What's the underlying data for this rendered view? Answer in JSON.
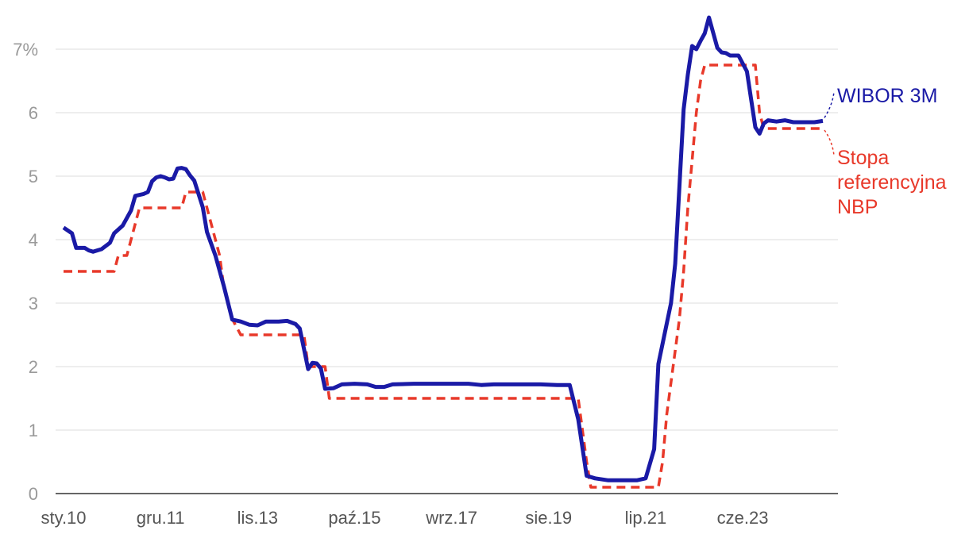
{
  "chart_data": {
    "type": "line",
    "y_tick_labels": [
      "0",
      "1",
      "2",
      "3",
      "4",
      "5",
      "6",
      "7%"
    ],
    "x_tick_labels": [
      "sty.10",
      "gru.11",
      "lis.13",
      "paź.15",
      "wrz.17",
      "sie.19",
      "lip.21",
      "cze.23"
    ],
    "x_tick_dates": [
      "2010-01",
      "2011-12",
      "2013-11",
      "2015-10",
      "2017-09",
      "2019-08",
      "2021-07",
      "2023-06"
    ],
    "xlim": [
      "2010-01",
      "2025-01"
    ],
    "ylim": [
      0,
      7.5
    ],
    "grid": "horizontal",
    "legend_placement": "right, at line ends",
    "series": [
      {
        "name": "WIBOR 3M",
        "color": "#1a1aa6",
        "style": "solid",
        "points": [
          [
            "2010-01",
            4.19
          ],
          [
            "2010-03",
            4.1
          ],
          [
            "2010-04",
            3.87
          ],
          [
            "2010-06",
            3.87
          ],
          [
            "2010-07",
            3.83
          ],
          [
            "2010-08",
            3.81
          ],
          [
            "2010-10",
            3.85
          ],
          [
            "2010-12",
            3.95
          ],
          [
            "2011-01",
            4.1
          ],
          [
            "2011-03",
            4.22
          ],
          [
            "2011-05",
            4.46
          ],
          [
            "2011-06",
            4.69
          ],
          [
            "2011-08",
            4.72
          ],
          [
            "2011-09",
            4.75
          ],
          [
            "2011-10",
            4.92
          ],
          [
            "2011-11",
            4.98
          ],
          [
            "2011-12",
            5.0
          ],
          [
            "2012-01",
            4.98
          ],
          [
            "2012-02",
            4.95
          ],
          [
            "2012-03",
            4.96
          ],
          [
            "2012-04",
            5.12
          ],
          [
            "2012-05",
            5.13
          ],
          [
            "2012-06",
            5.11
          ],
          [
            "2012-07",
            5.01
          ],
          [
            "2012-08",
            4.93
          ],
          [
            "2012-10",
            4.51
          ],
          [
            "2012-11",
            4.12
          ],
          [
            "2013-01",
            3.75
          ],
          [
            "2013-03",
            3.27
          ],
          [
            "2013-05",
            2.74
          ],
          [
            "2013-07",
            2.71
          ],
          [
            "2013-09",
            2.66
          ],
          [
            "2013-11",
            2.65
          ],
          [
            "2014-01",
            2.71
          ],
          [
            "2014-04",
            2.71
          ],
          [
            "2014-06",
            2.72
          ],
          [
            "2014-08",
            2.67
          ],
          [
            "2014-09",
            2.6
          ],
          [
            "2014-11",
            1.96
          ],
          [
            "2014-12",
            2.06
          ],
          [
            "2015-01",
            2.05
          ],
          [
            "2015-02",
            1.97
          ],
          [
            "2015-03",
            1.65
          ],
          [
            "2015-05",
            1.66
          ],
          [
            "2015-07",
            1.72
          ],
          [
            "2015-10",
            1.73
          ],
          [
            "2016-01",
            1.72
          ],
          [
            "2016-03",
            1.68
          ],
          [
            "2016-05",
            1.68
          ],
          [
            "2016-07",
            1.72
          ],
          [
            "2016-12",
            1.73
          ],
          [
            "2018-01",
            1.73
          ],
          [
            "2018-04",
            1.71
          ],
          [
            "2018-07",
            1.72
          ],
          [
            "2019-01",
            1.72
          ],
          [
            "2019-06",
            1.72
          ],
          [
            "2019-10",
            1.71
          ],
          [
            "2020-01",
            1.71
          ],
          [
            "2020-03",
            1.17
          ],
          [
            "2020-05",
            0.28
          ],
          [
            "2020-07",
            0.24
          ],
          [
            "2020-10",
            0.21
          ],
          [
            "2021-01",
            0.21
          ],
          [
            "2021-05",
            0.21
          ],
          [
            "2021-07",
            0.24
          ],
          [
            "2021-09",
            0.7
          ],
          [
            "2021-10",
            2.04
          ],
          [
            "2022-01",
            3.0
          ],
          [
            "2022-02",
            3.62
          ],
          [
            "2022-04",
            6.05
          ],
          [
            "2022-05",
            6.6
          ],
          [
            "2022-06",
            7.05
          ],
          [
            "2022-07",
            7.0
          ],
          [
            "2022-08",
            7.13
          ],
          [
            "2022-09",
            7.25
          ],
          [
            "2022-10",
            7.5
          ],
          [
            "2022-12",
            7.02
          ],
          [
            "2023-01",
            6.95
          ],
          [
            "2023-02",
            6.94
          ],
          [
            "2023-03",
            6.9
          ],
          [
            "2023-05",
            6.9
          ],
          [
            "2023-07",
            6.65
          ],
          [
            "2023-09",
            5.77
          ],
          [
            "2023-10",
            5.67
          ],
          [
            "2023-11",
            5.83
          ],
          [
            "2023-12",
            5.88
          ],
          [
            "2024-02",
            5.86
          ],
          [
            "2024-04",
            5.88
          ],
          [
            "2024-06",
            5.85
          ],
          [
            "2024-09",
            5.85
          ],
          [
            "2024-11",
            5.85
          ],
          [
            "2025-01",
            5.87
          ]
        ]
      },
      {
        "name": "Stopa referencyjna NBP",
        "color": "#e8392a",
        "style": "dashed",
        "points": [
          [
            "2010-01",
            3.5
          ],
          [
            "2011-01",
            3.5
          ],
          [
            "2011-02",
            3.75
          ],
          [
            "2011-04",
            3.75
          ],
          [
            "2011-05",
            4.0
          ],
          [
            "2011-06",
            4.25
          ],
          [
            "2011-07",
            4.5
          ],
          [
            "2012-05",
            4.5
          ],
          [
            "2012-06",
            4.75
          ],
          [
            "2012-10",
            4.75
          ],
          [
            "2012-11",
            4.5
          ],
          [
            "2012-12",
            4.25
          ],
          [
            "2013-01",
            4.0
          ],
          [
            "2013-02",
            3.75
          ],
          [
            "2013-03",
            3.25
          ],
          [
            "2013-04",
            3.0
          ],
          [
            "2013-05",
            2.75
          ],
          [
            "2013-07",
            2.5
          ],
          [
            "2014-10",
            2.5
          ],
          [
            "2014-11",
            2.0
          ],
          [
            "2015-03",
            2.0
          ],
          [
            "2015-04",
            1.5
          ],
          [
            "2020-03",
            1.5
          ],
          [
            "2020-04",
            1.0
          ],
          [
            "2020-05",
            0.5
          ],
          [
            "2020-06",
            0.1
          ],
          [
            "2021-10",
            0.1
          ],
          [
            "2021-11",
            0.5
          ],
          [
            "2021-12",
            1.25
          ],
          [
            "2022-01",
            1.75
          ],
          [
            "2022-02",
            2.25
          ],
          [
            "2022-03",
            2.75
          ],
          [
            "2022-04",
            3.5
          ],
          [
            "2022-05",
            4.5
          ],
          [
            "2022-06",
            5.25
          ],
          [
            "2022-07",
            6.0
          ],
          [
            "2022-08",
            6.5
          ],
          [
            "2022-09",
            6.75
          ],
          [
            "2023-09",
            6.75
          ],
          [
            "2023-10",
            6.0
          ],
          [
            "2023-11",
            5.75
          ],
          [
            "2025-01",
            5.75
          ]
        ]
      }
    ]
  }
}
